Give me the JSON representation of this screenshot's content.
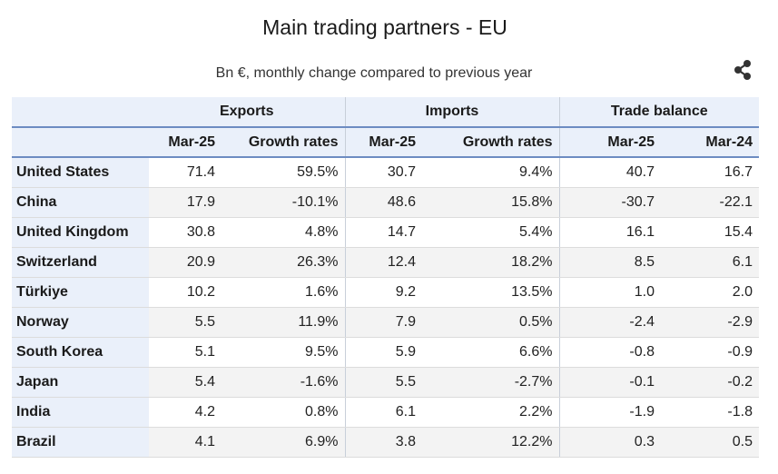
{
  "chart_data": {
    "type": "table",
    "title": "Main trading partners - EU",
    "subtitle": "Bn €, monthly change compared to previous year",
    "groups": [
      "Exports",
      "Imports",
      "Trade balance"
    ],
    "columns": [
      "Mar-25",
      "Growth rates",
      "Mar-25",
      "Growth rates",
      "Mar-25",
      "Mar-24"
    ],
    "rows": [
      {
        "country": "United States",
        "values": [
          "71.4",
          "59.5%",
          "30.7",
          "9.4%",
          "40.7",
          "16.7"
        ]
      },
      {
        "country": "China",
        "values": [
          "17.9",
          "-10.1%",
          "48.6",
          "15.8%",
          "-30.7",
          "-22.1"
        ]
      },
      {
        "country": "United Kingdom",
        "values": [
          "30.8",
          "4.8%",
          "14.7",
          "5.4%",
          "16.1",
          "15.4"
        ]
      },
      {
        "country": "Switzerland",
        "values": [
          "20.9",
          "26.3%",
          "12.4",
          "18.2%",
          "8.5",
          "6.1"
        ]
      },
      {
        "country": "Türkiye",
        "values": [
          "10.2",
          "1.6%",
          "9.2",
          "13.5%",
          "1.0",
          "2.0"
        ]
      },
      {
        "country": "Norway",
        "values": [
          "5.5",
          "11.9%",
          "7.9",
          "0.5%",
          "-2.4",
          "-2.9"
        ]
      },
      {
        "country": "South Korea",
        "values": [
          "5.1",
          "9.5%",
          "5.9",
          "6.6%",
          "-0.8",
          "-0.9"
        ]
      },
      {
        "country": "Japan",
        "values": [
          "5.4",
          "-1.6%",
          "5.5",
          "-2.7%",
          "-0.1",
          "-0.2"
        ]
      },
      {
        "country": "India",
        "values": [
          "4.2",
          "0.8%",
          "6.1",
          "2.2%",
          "-1.9",
          "-1.8"
        ]
      },
      {
        "country": "Brazil",
        "values": [
          "4.1",
          "6.9%",
          "3.8",
          "12.2%",
          "0.3",
          "0.5"
        ]
      }
    ]
  },
  "colors": {
    "header_bg": "#eaf0fa",
    "header_rule": "#6d8cc2",
    "stripe_bg": "#f3f3f3"
  },
  "icons": {
    "share": "share-icon"
  }
}
